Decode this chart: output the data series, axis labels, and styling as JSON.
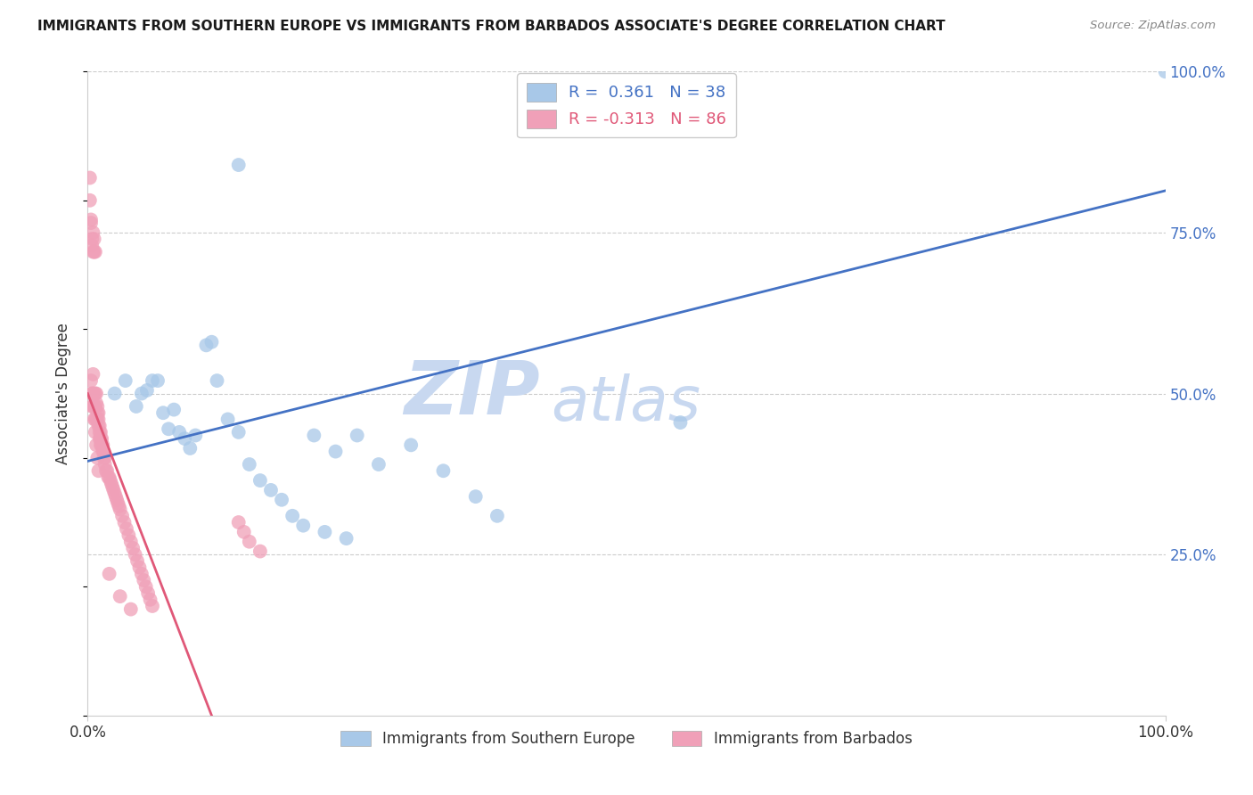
{
  "title": "IMMIGRANTS FROM SOUTHERN EUROPE VS IMMIGRANTS FROM BARBADOS ASSOCIATE'S DEGREE CORRELATION CHART",
  "source": "Source: ZipAtlas.com",
  "ylabel": "Associate's Degree",
  "xlim": [
    0,
    1.0
  ],
  "ylim": [
    0,
    1.0
  ],
  "blue_R": 0.361,
  "blue_N": 38,
  "pink_R": -0.313,
  "pink_N": 86,
  "legend_label_blue": "Immigrants from Southern Europe",
  "legend_label_pink": "Immigrants from Barbados",
  "blue_color": "#a8c8e8",
  "pink_color": "#f0a0b8",
  "line_blue_color": "#4472c4",
  "line_pink_color": "#e05878",
  "watermark_zip": "ZIP",
  "watermark_atlas": "atlas",
  "watermark_color": "#c8d8f0",
  "title_fontsize": 11,
  "source_fontsize": 9.5,
  "blue_line_x0": 0.0,
  "blue_line_y0": 0.395,
  "blue_line_x1": 1.0,
  "blue_line_y1": 0.815,
  "pink_line_x0": 0.0,
  "pink_line_y0": 0.5,
  "pink_line_x1": 0.115,
  "pink_line_y1": 0.0,
  "ytick_color": "#4472c4",
  "xtick_color": "#333333",
  "grid_color": "#cccccc",
  "blue_scatter_x": [
    0.14,
    0.025,
    0.035,
    0.05,
    0.06,
    0.065,
    0.07,
    0.08,
    0.09,
    0.1,
    0.115,
    0.13,
    0.15,
    0.17,
    0.19,
    0.21,
    0.23,
    0.25,
    0.27,
    0.3,
    0.33,
    0.36,
    0.38,
    0.55,
    1.0,
    0.045,
    0.055,
    0.075,
    0.085,
    0.095,
    0.11,
    0.12,
    0.14,
    0.16,
    0.18,
    0.2,
    0.22,
    0.24
  ],
  "blue_scatter_y": [
    0.855,
    0.5,
    0.52,
    0.5,
    0.52,
    0.52,
    0.47,
    0.475,
    0.43,
    0.435,
    0.58,
    0.46,
    0.39,
    0.35,
    0.31,
    0.435,
    0.41,
    0.435,
    0.39,
    0.42,
    0.38,
    0.34,
    0.31,
    0.455,
    1.0,
    0.48,
    0.505,
    0.445,
    0.44,
    0.415,
    0.575,
    0.52,
    0.44,
    0.365,
    0.335,
    0.295,
    0.285,
    0.275
  ],
  "pink_scatter_x": [
    0.002,
    0.002,
    0.003,
    0.003,
    0.004,
    0.004,
    0.004,
    0.005,
    0.005,
    0.005,
    0.006,
    0.006,
    0.006,
    0.006,
    0.007,
    0.007,
    0.007,
    0.007,
    0.008,
    0.008,
    0.008,
    0.009,
    0.009,
    0.009,
    0.01,
    0.01,
    0.01,
    0.011,
    0.011,
    0.011,
    0.012,
    0.012,
    0.012,
    0.013,
    0.013,
    0.014,
    0.014,
    0.015,
    0.015,
    0.016,
    0.016,
    0.017,
    0.018,
    0.019,
    0.02,
    0.021,
    0.022,
    0.023,
    0.024,
    0.025,
    0.026,
    0.027,
    0.028,
    0.029,
    0.03,
    0.032,
    0.034,
    0.036,
    0.038,
    0.04,
    0.042,
    0.044,
    0.046,
    0.048,
    0.05,
    0.052,
    0.054,
    0.056,
    0.058,
    0.06,
    0.004,
    0.005,
    0.006,
    0.007,
    0.008,
    0.009,
    0.01,
    0.02,
    0.03,
    0.04,
    0.14,
    0.145,
    0.15,
    0.16,
    0.003,
    0.004
  ],
  "pink_scatter_y": [
    0.835,
    0.8,
    0.77,
    0.765,
    0.73,
    0.74,
    0.5,
    0.75,
    0.72,
    0.53,
    0.74,
    0.72,
    0.5,
    0.48,
    0.72,
    0.5,
    0.48,
    0.46,
    0.5,
    0.485,
    0.46,
    0.48,
    0.47,
    0.46,
    0.47,
    0.46,
    0.45,
    0.45,
    0.44,
    0.43,
    0.44,
    0.43,
    0.42,
    0.43,
    0.42,
    0.42,
    0.41,
    0.41,
    0.4,
    0.4,
    0.39,
    0.38,
    0.38,
    0.37,
    0.37,
    0.365,
    0.36,
    0.355,
    0.35,
    0.345,
    0.34,
    0.335,
    0.33,
    0.325,
    0.32,
    0.31,
    0.3,
    0.29,
    0.28,
    0.27,
    0.26,
    0.25,
    0.24,
    0.23,
    0.22,
    0.21,
    0.2,
    0.19,
    0.18,
    0.17,
    0.5,
    0.48,
    0.46,
    0.44,
    0.42,
    0.4,
    0.38,
    0.22,
    0.185,
    0.165,
    0.3,
    0.285,
    0.27,
    0.255,
    0.52,
    0.48
  ]
}
